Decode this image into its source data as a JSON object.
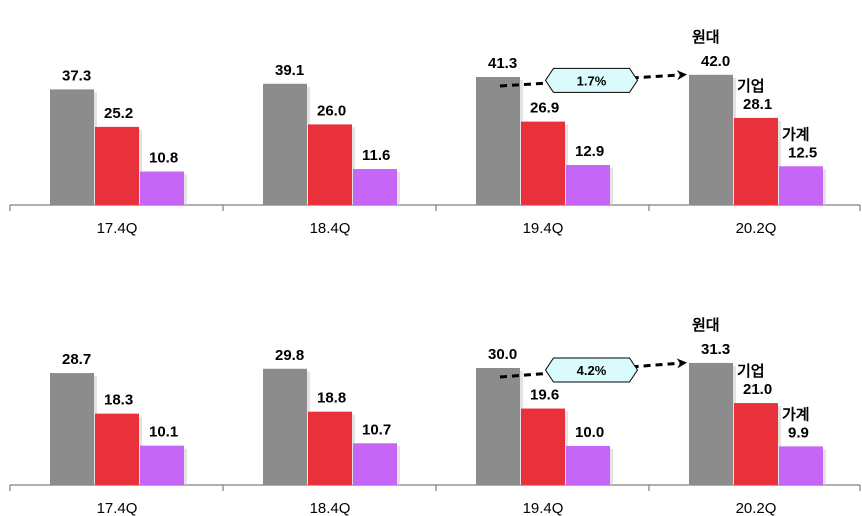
{
  "colors": {
    "gray": "#8c8c8c",
    "red": "#e8313a",
    "purple": "#c566f7",
    "callout_fill": "#d9fbfb"
  },
  "chart_data": [
    {
      "type": "bar",
      "categories": [
        "17.4Q",
        "18.4Q",
        "19.4Q",
        "20.2Q"
      ],
      "series": [
        {
          "name": "원대",
          "values": [
            37.3,
            39.1,
            41.3,
            42.0
          ]
        },
        {
          "name": "기업",
          "values": [
            25.2,
            26.0,
            26.9,
            28.1
          ]
        },
        {
          "name": "가계",
          "values": [
            10.8,
            11.6,
            12.9,
            12.5
          ]
        }
      ],
      "annotation": {
        "text": "1.7%",
        "from": "19.4Q",
        "to": "20.2Q"
      }
    },
    {
      "type": "bar",
      "categories": [
        "17.4Q",
        "18.4Q",
        "19.4Q",
        "20.2Q"
      ],
      "series": [
        {
          "name": "원대",
          "values": [
            28.7,
            29.8,
            30.0,
            31.3
          ]
        },
        {
          "name": "기업",
          "values": [
            18.3,
            18.8,
            19.6,
            21.0
          ]
        },
        {
          "name": "가계",
          "values": [
            10.1,
            10.7,
            10.0,
            9.9
          ]
        }
      ],
      "annotation": {
        "text": "4.2%",
        "from": "19.4Q",
        "to": "20.2Q"
      }
    }
  ]
}
